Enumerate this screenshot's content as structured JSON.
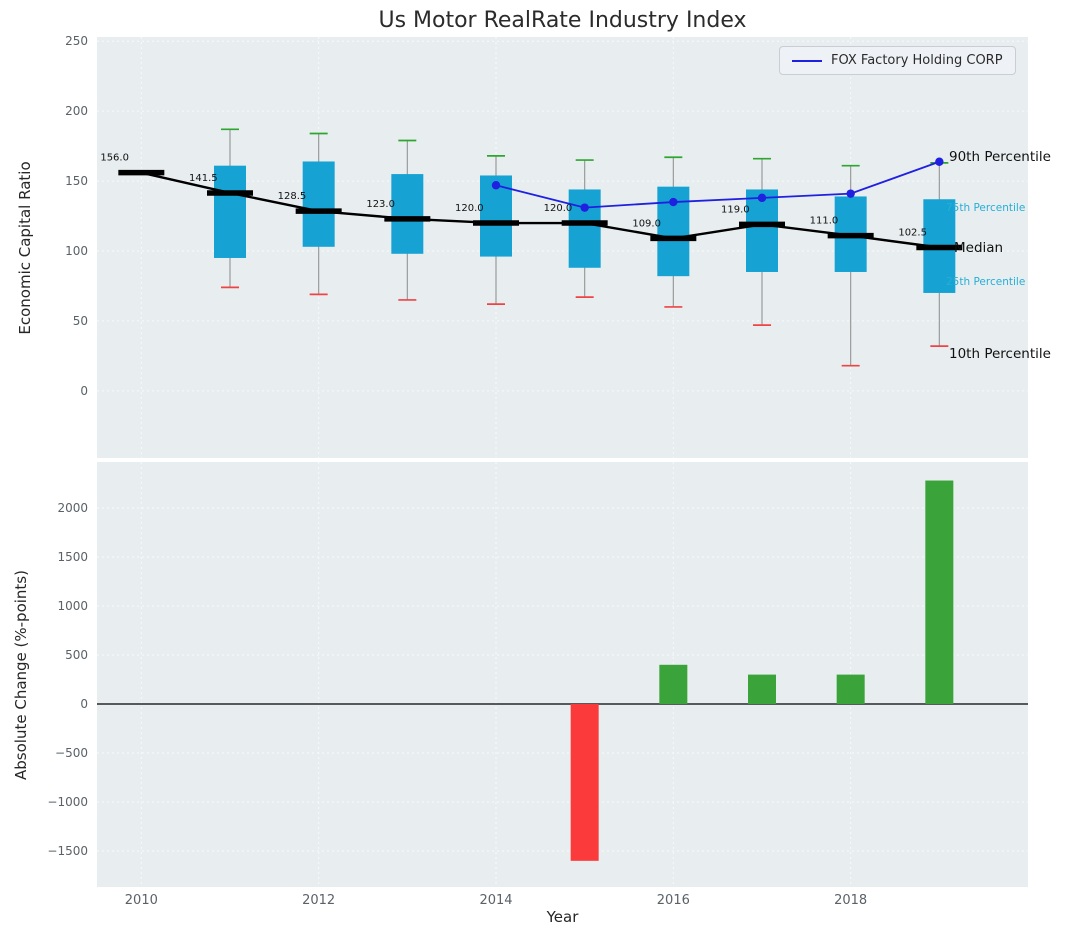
{
  "title": "Us Motor RealRate Industry Index",
  "legend": {
    "fox_label": "FOX Factory Holding CORP"
  },
  "annotations": {
    "p90": "90th Percentile",
    "p75": "75th Percentile",
    "median": "Median",
    "p25": "25th Percentile",
    "p10": "10th Percentile"
  },
  "colors": {
    "axes_bg": "#e8eef0",
    "grid": "#f7f9fa",
    "box_fill": "#16a3d4",
    "whisker": "#9a9a9a",
    "cap_top": "#2ea52e",
    "cap_bottom": "#f04343",
    "median_line": "#000000",
    "fox_line": "#2020e0",
    "bar_positive": "#3aa33a",
    "bar_negative": "#fb3b3b",
    "annotation_cyan": "#26aed6",
    "zero_line": "#000000"
  },
  "chart_data": [
    {
      "type": "box",
      "title": "Us Motor RealRate Industry Index",
      "ylabel": "Economic Capital Ratio",
      "ylim": [
        -48,
        253
      ],
      "yticks": [
        0,
        50,
        100,
        150,
        200,
        250
      ],
      "xlim": [
        2009.5,
        2020.0
      ],
      "xticks": [
        2010,
        2012,
        2014,
        2016,
        2018
      ],
      "grid": true,
      "legend_position": "upper right",
      "years": [
        2010,
        2011,
        2012,
        2013,
        2014,
        2015,
        2016,
        2017,
        2018,
        2019
      ],
      "median": [
        156.0,
        141.5,
        128.5,
        123.0,
        120.0,
        120.0,
        109.0,
        119.0,
        111.0,
        102.5
      ],
      "q25": [
        null,
        95,
        103,
        98,
        96,
        88,
        82,
        85,
        85,
        70
      ],
      "q75": [
        null,
        161,
        164,
        155,
        154,
        144,
        146,
        144,
        139,
        137
      ],
      "p10": [
        null,
        74,
        69,
        65,
        62,
        67,
        60,
        47,
        18,
        32
      ],
      "p90": [
        null,
        187,
        184,
        179,
        168,
        165,
        167,
        166,
        161,
        163
      ],
      "series": [
        {
          "name": "FOX Factory Holding CORP",
          "x": [
            2014,
            2015,
            2016,
            2017,
            2018,
            2019
          ],
          "values": [
            147,
            131,
            135,
            138,
            141,
            163.8
          ]
        }
      ]
    },
    {
      "type": "bar",
      "ylabel": "Absolute Change (%-points)",
      "xlabel": "Year",
      "ylim": [
        -1867,
        2469
      ],
      "yticks": [
        -1500,
        -1000,
        -500,
        0,
        500,
        1000,
        1500,
        2000
      ],
      "xlim": [
        2009.5,
        2020.0
      ],
      "xticks": [
        2010,
        2012,
        2014,
        2016,
        2018
      ],
      "grid": true,
      "categories": [
        2015,
        2016,
        2017,
        2018,
        2019
      ],
      "values": [
        -1600,
        400,
        300,
        300,
        2280
      ]
    }
  ]
}
